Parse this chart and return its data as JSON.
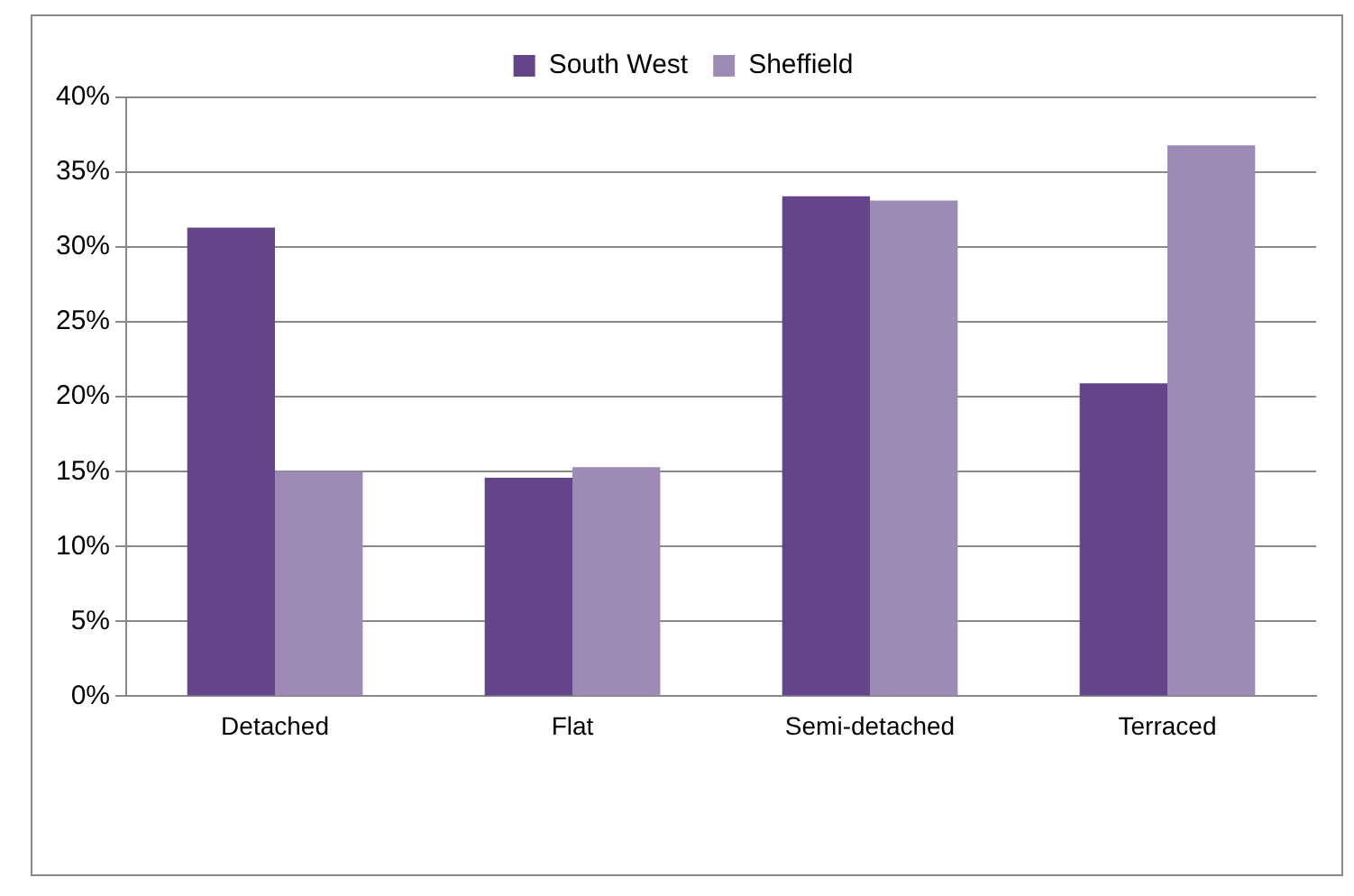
{
  "chart_data": {
    "type": "bar",
    "categories": [
      "Detached",
      "Flat",
      "Semi-detached",
      "Terraced"
    ],
    "series": [
      {
        "name": "South West",
        "color": "#654589",
        "values": [
          31.3,
          14.6,
          33.4,
          20.9
        ]
      },
      {
        "name": "Sheffield",
        "color": "#9d8ab5",
        "values": [
          15.0,
          15.3,
          33.1,
          36.8
        ]
      }
    ],
    "ylim": [
      0,
      40
    ],
    "yticks": [
      {
        "value": 0,
        "label": "0%"
      },
      {
        "value": 5,
        "label": "5%"
      },
      {
        "value": 10,
        "label": "10%"
      },
      {
        "value": 15,
        "label": "15%"
      },
      {
        "value": 20,
        "label": "20%"
      },
      {
        "value": 25,
        "label": "25%"
      },
      {
        "value": 30,
        "label": "30%"
      },
      {
        "value": 35,
        "label": "35%"
      },
      {
        "value": 40,
        "label": "40%"
      }
    ],
    "grid": "y",
    "legend": "top"
  }
}
